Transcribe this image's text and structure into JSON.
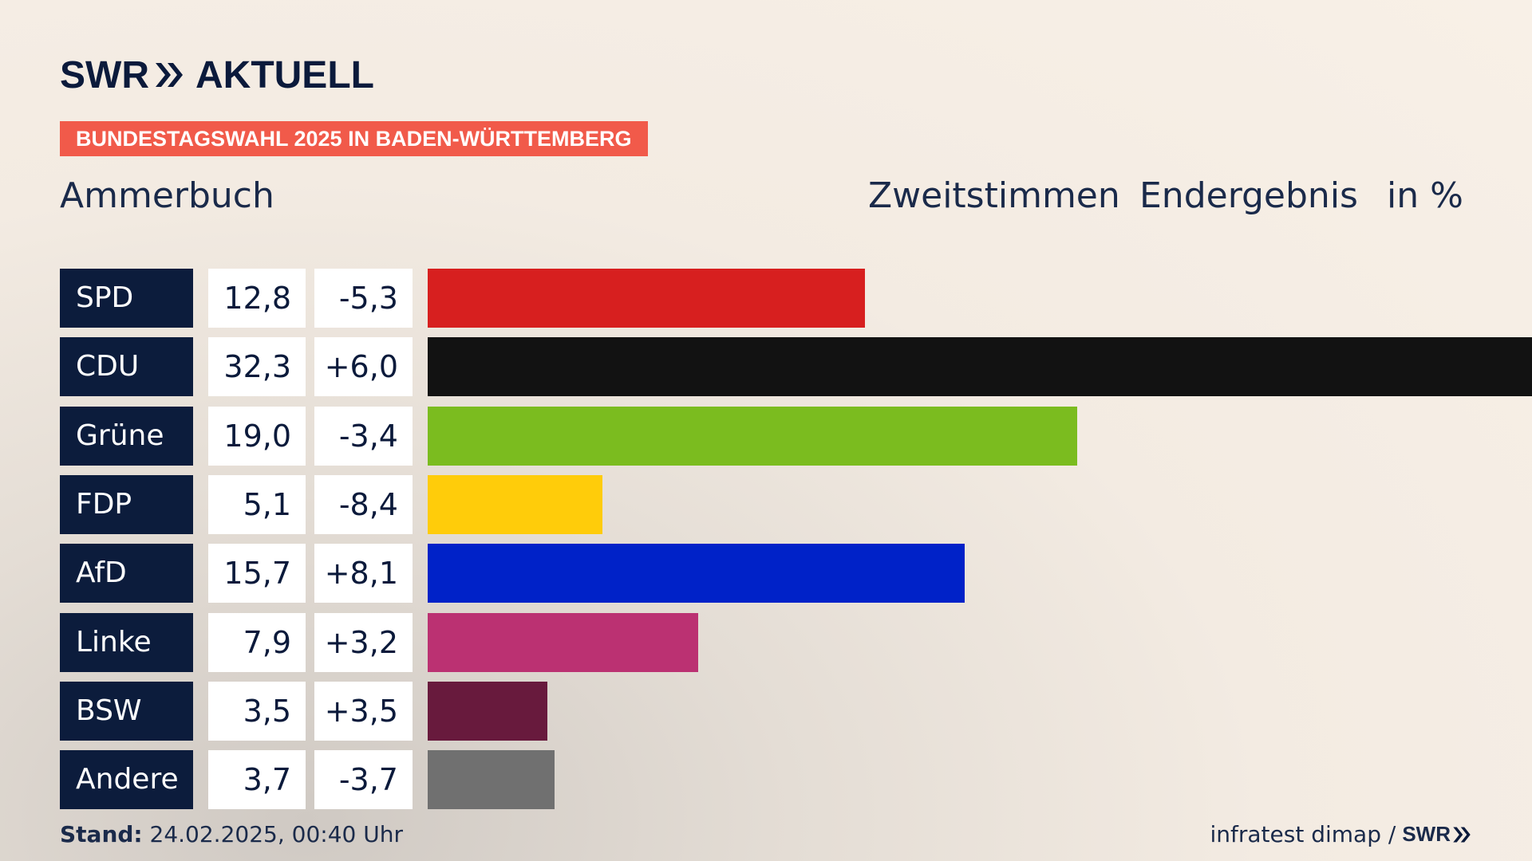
{
  "header": {
    "logo_left": "SWR",
    "logo_right": "AKTUELL",
    "banner": "BUNDESTAGSWAHL 2025 IN BADEN-WÜRTTEMBERG",
    "place": "Ammerbuch",
    "col1": "Zweitstimmen",
    "col2": "Endergebnis",
    "col3": "in %"
  },
  "chart_data": {
    "type": "bar",
    "orientation": "horizontal",
    "categories": [
      "SPD",
      "CDU",
      "Grüne",
      "FDP",
      "AfD",
      "Linke",
      "BSW",
      "Andere"
    ],
    "values": [
      12.8,
      32.3,
      19.0,
      5.1,
      15.7,
      7.9,
      3.5,
      3.7
    ],
    "value_labels": [
      "12,8",
      "32,3",
      "19,0",
      "5,1",
      "15,7",
      "7,9",
      "3,5",
      "3,7"
    ],
    "diff_labels": [
      "-5,3",
      "+6,0",
      "-3,4",
      "-8,4",
      "+8,1",
      "+3,2",
      "+3,5",
      "-3,7"
    ],
    "colors": [
      "#d71f1f",
      "#121212",
      "#7bbc1f",
      "#ffcc0a",
      "#0022c8",
      "#bb3172",
      "#681a3d",
      "#707070"
    ],
    "xlim": [
      0,
      32.3
    ],
    "grid": false
  },
  "footer": {
    "stand_label": "Stand:",
    "stand_value": " 24.02.2025, 00:40 Uhr",
    "source": "infratest dimap /",
    "source_logo": "SWR"
  }
}
